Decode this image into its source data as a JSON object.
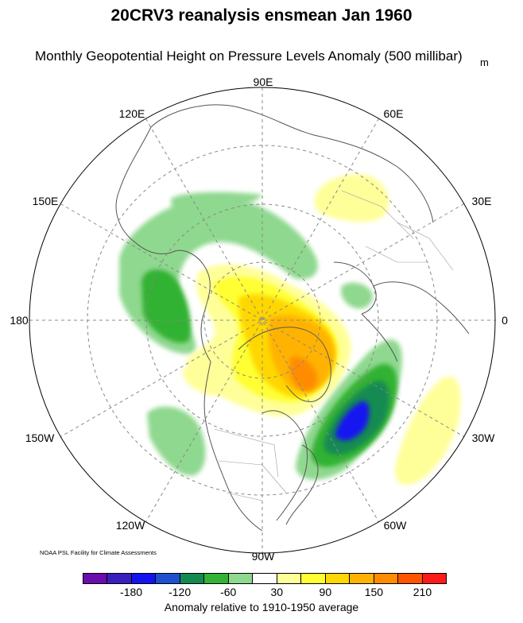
{
  "title": "20CRV3 reanalysis ensmean Jan 1960",
  "subtitle": "Monthly Geopotential Height on Pressure Levels Anomaly (500 millibar)",
  "unit": "m",
  "credit": "NOAA PSL Facility for Climate Assessments",
  "longitude_labels": {
    "e90": "90E",
    "e60": "60E",
    "e30": "30E",
    "zero": "0",
    "w30": "30W",
    "w60": "60W",
    "w90": "90W",
    "w120": "120W",
    "w150": "150W",
    "dateline": "180",
    "e150": "150E",
    "e120": "120E"
  },
  "colorbar": {
    "label": "Anomaly relative to 1910-1950 average",
    "tick_labels": [
      "-180",
      "-120",
      "-60",
      "30",
      "90",
      "150",
      "210"
    ],
    "colors": [
      "#6a0dad",
      "#3a1fbf",
      "#1414f0",
      "#1f4fcf",
      "#138a52",
      "#33b233",
      "#8fd88f",
      "#ffffff",
      "#ffff99",
      "#ffff33",
      "#ffd700",
      "#ffb300",
      "#ff8c00",
      "#ff5500",
      "#ff1a1a"
    ]
  },
  "anomaly_features": [
    {
      "name": "negative anomaly center east of North America",
      "level": "-180",
      "color": "#1f4fcf"
    },
    {
      "name": "positive anomaly center over Greenland",
      "level": "150",
      "color": "#ff8c00"
    },
    {
      "name": "negative anomaly ring over Siberia / Alaska",
      "level": "-60",
      "color": "#8fd88f"
    },
    {
      "name": "positive anomaly over eastern Atlantic",
      "level": "30",
      "color": "#ffff99"
    },
    {
      "name": "positive anomaly over Russia",
      "level": "30",
      "color": "#ffff99"
    }
  ]
}
